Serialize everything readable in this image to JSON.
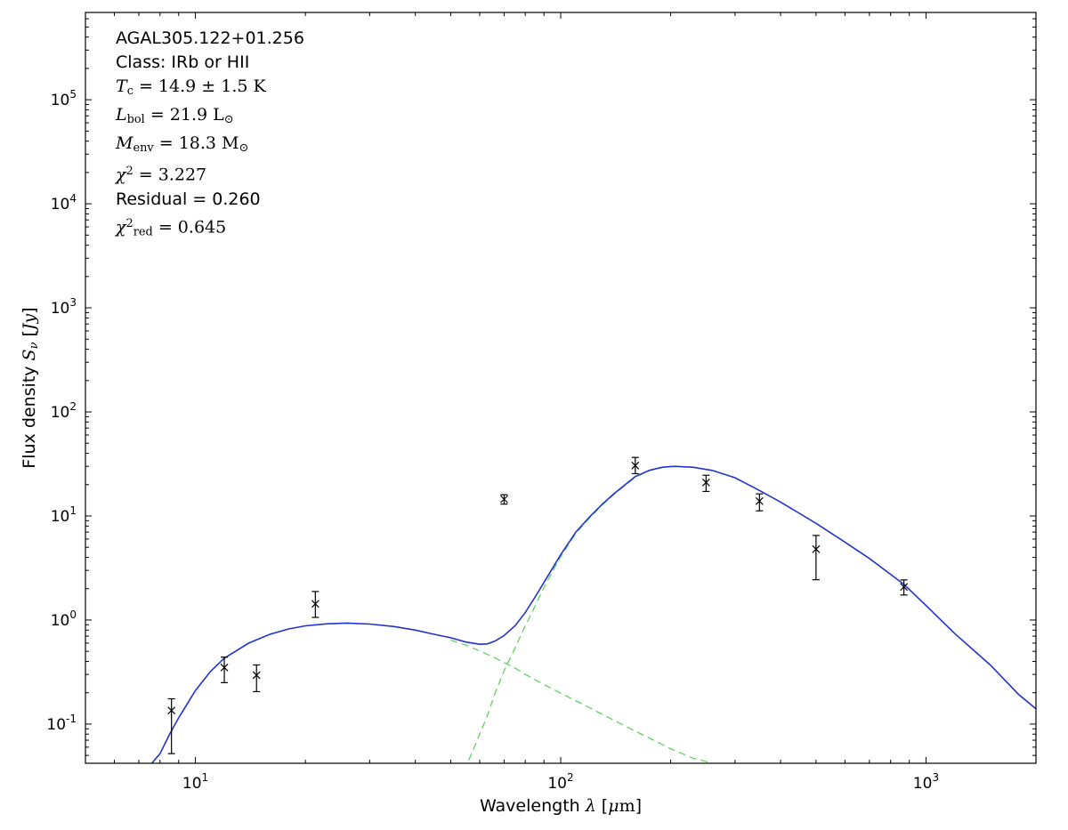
{
  "figure": {
    "annotation_lines": [
      {
        "math": false,
        "segs": [
          {
            "t": "AGAL305.122+01.256"
          }
        ]
      },
      {
        "math": false,
        "segs": [
          {
            "t": "Class: IRb or HII"
          }
        ]
      },
      {
        "math": true,
        "segs": [
          {
            "t": "T",
            "i": true
          },
          {
            "t": "c",
            "sub": true
          },
          {
            "t": " = 14.9 ± 1.5 K"
          }
        ]
      },
      {
        "math": true,
        "segs": [
          {
            "t": "L",
            "i": true
          },
          {
            "t": "bol",
            "sub": true
          },
          {
            "t": " = 21.9 L"
          },
          {
            "t": "⊙",
            "sub": true
          }
        ]
      },
      {
        "math": true,
        "segs": [
          {
            "t": "M",
            "i": true
          },
          {
            "t": "env",
            "sub": true
          },
          {
            "t": " = 18.3 M"
          },
          {
            "t": "⊙",
            "sub": true
          }
        ]
      },
      {
        "math": true,
        "segs": [
          {
            "t": "χ",
            "i": true
          },
          {
            "t": "2",
            "sup": true
          },
          {
            "t": " = 3.227"
          }
        ]
      },
      {
        "math": false,
        "segs": [
          {
            "t": "Residual = 0.260"
          }
        ]
      },
      {
        "math": true,
        "segs": [
          {
            "t": "χ",
            "i": true
          },
          {
            "t": "2",
            "sup": true
          },
          {
            "t": "red",
            "sub": true
          },
          {
            "t": " = 0.645"
          }
        ]
      }
    ]
  },
  "chart_data": {
    "type": "line",
    "description": "Spectral energy distribution (SED) of AGAL305.122+01.256: two-component greybody fit (blue total, green dashed components) with photometric data points and error bars on log-log axes",
    "title": "",
    "xlabel_segs": [
      {
        "t": "Wavelength "
      },
      {
        "t": "λ",
        "f": "mathit"
      },
      {
        "t": " ["
      },
      {
        "t": "μ",
        "f": "mathit"
      },
      {
        "t": "m",
        "f": "math"
      },
      {
        "t": "]"
      }
    ],
    "ylabel_segs": [
      {
        "t": "Flux density "
      },
      {
        "t": "S",
        "f": "mathit"
      },
      {
        "t": "ν",
        "f": "mathit",
        "sub": true
      },
      {
        "t": " ["
      },
      {
        "t": "Jy",
        "f": "mathit"
      },
      {
        "t": "]"
      }
    ],
    "xlabel_text": "Wavelength λ [μm]",
    "ylabel_text": "Flux density Sν [Jy]",
    "xscale": "log",
    "yscale": "log",
    "xlim": [
      5,
      2000
    ],
    "ylim": [
      0.042,
      690000
    ],
    "x_major_ticks": [
      10,
      100,
      1000
    ],
    "y_major_ticks": [
      0.1,
      1,
      10,
      100,
      1000,
      10000,
      100000
    ],
    "grid": false,
    "legend": null,
    "colors": {
      "model_total": "#2233cc",
      "components": "#5fd35f",
      "data": "#000000",
      "frame": "#000000"
    },
    "data_points": [
      {
        "x": 8.6,
        "y": 0.135,
        "ylo": 0.052,
        "yhi": 0.175
      },
      {
        "x": 12.0,
        "y": 0.35,
        "ylo": 0.25,
        "yhi": 0.44
      },
      {
        "x": 14.7,
        "y": 0.295,
        "ylo": 0.205,
        "yhi": 0.37
      },
      {
        "x": 21.3,
        "y": 1.43,
        "ylo": 1.06,
        "yhi": 1.88
      },
      {
        "x": 70,
        "y": 14.5,
        "ylo": 13.0,
        "yhi": 16.0
      },
      {
        "x": 160,
        "y": 30.5,
        "ylo": 25.5,
        "yhi": 36.5
      },
      {
        "x": 250,
        "y": 21.0,
        "ylo": 17.2,
        "yhi": 24.6
      },
      {
        "x": 350,
        "y": 13.9,
        "ylo": 11.2,
        "yhi": 16.3
      },
      {
        "x": 500,
        "y": 4.8,
        "ylo": 2.44,
        "yhi": 6.5
      },
      {
        "x": 870,
        "y": 2.08,
        "ylo": 1.74,
        "yhi": 2.43
      }
    ],
    "model_total": [
      [
        7.6,
        0.042
      ],
      [
        8,
        0.052
      ],
      [
        8.5,
        0.08
      ],
      [
        9,
        0.115
      ],
      [
        10,
        0.21
      ],
      [
        11,
        0.32
      ],
      [
        12,
        0.43
      ],
      [
        14,
        0.6
      ],
      [
        16,
        0.73
      ],
      [
        18,
        0.82
      ],
      [
        20,
        0.88
      ],
      [
        23,
        0.92
      ],
      [
        26,
        0.935
      ],
      [
        30,
        0.915
      ],
      [
        35,
        0.865
      ],
      [
        40,
        0.8
      ],
      [
        45,
        0.73
      ],
      [
        50,
        0.675
      ],
      [
        55,
        0.615
      ],
      [
        60,
        0.585
      ],
      [
        63,
        0.59
      ],
      [
        66,
        0.625
      ],
      [
        70,
        0.71
      ],
      [
        75,
        0.88
      ],
      [
        80,
        1.18
      ],
      [
        85,
        1.65
      ],
      [
        90,
        2.3
      ],
      [
        95,
        3.15
      ],
      [
        100,
        4.25
      ],
      [
        110,
        7.0
      ],
      [
        120,
        9.8
      ],
      [
        130,
        13.0
      ],
      [
        140,
        16.4
      ],
      [
        160,
        23.9
      ],
      [
        175,
        27.5
      ],
      [
        190,
        29.4
      ],
      [
        205,
        30.0
      ],
      [
        230,
        29.4
      ],
      [
        260,
        27.4
      ],
      [
        300,
        23.3
      ],
      [
        350,
        17.6
      ],
      [
        400,
        13.6
      ],
      [
        450,
        10.6
      ],
      [
        500,
        8.5
      ],
      [
        600,
        5.6
      ],
      [
        700,
        3.9
      ],
      [
        870,
        2.2
      ],
      [
        1000,
        1.38
      ],
      [
        1200,
        0.74
      ],
      [
        1500,
        0.37
      ],
      [
        1800,
        0.19
      ],
      [
        2000,
        0.14
      ]
    ],
    "component_hot": [
      [
        50,
        0.64
      ],
      [
        55,
        0.575
      ],
      [
        60,
        0.505
      ],
      [
        65,
        0.445
      ],
      [
        70,
        0.39
      ],
      [
        75,
        0.345
      ],
      [
        80,
        0.3
      ],
      [
        90,
        0.24
      ],
      [
        100,
        0.198
      ],
      [
        115,
        0.155
      ],
      [
        130,
        0.124
      ],
      [
        150,
        0.096
      ],
      [
        170,
        0.077
      ],
      [
        200,
        0.058
      ],
      [
        230,
        0.047
      ],
      [
        258,
        0.0425
      ]
    ],
    "component_cold": [
      [
        56,
        0.045
      ],
      [
        58,
        0.06
      ],
      [
        60,
        0.08
      ],
      [
        63,
        0.12
      ],
      [
        66,
        0.195
      ],
      [
        70,
        0.325
      ],
      [
        75,
        0.54
      ],
      [
        80,
        0.88
      ],
      [
        85,
        1.35
      ],
      [
        90,
        2.05
      ],
      [
        95,
        2.95
      ],
      [
        100,
        4.05
      ],
      [
        110,
        6.8
      ],
      [
        120,
        9.6
      ],
      [
        130,
        12.8
      ],
      [
        140,
        16.2
      ],
      [
        160,
        23.6
      ],
      [
        175,
        27.3
      ],
      [
        190,
        29.2
      ]
    ]
  }
}
